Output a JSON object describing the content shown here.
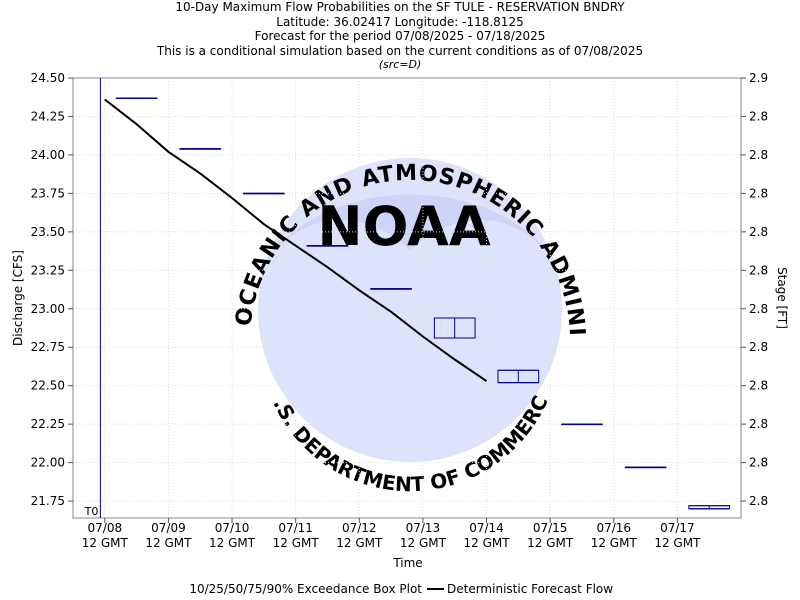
{
  "header": {
    "line1": "10-Day Maximum Flow Probabilities on the SF TULE - RESERVATION BNDRY",
    "line2": "Latitude: 36.02417 Longitude: -118.8125",
    "line3": "Forecast for the period 07/08/2025 - 07/18/2025",
    "line4": "This is a conditional simulation based on the current conditions as of 07/08/2025",
    "line5": "(src=D)"
  },
  "watermark": {
    "logo_text": "NOAA",
    "ring_top": "NATIONAL OCEANIC AND ATMOSPHERIC ADMINISTRATION",
    "ring_bottom": "U.S. DEPARTMENT OF COMMERCE"
  },
  "colors": {
    "forecast_line": "#000000",
    "box_plot": "#00008b",
    "t0_line": "#00008b",
    "grid": "#dddddd",
    "watermark_circle": "#dde3fb",
    "watermark_dark": "#cfd3f5",
    "watermark_text": "#c9cff0"
  },
  "chart_data": {
    "type": "line",
    "xlabel": "Time",
    "ylabel": "Discharge [CFS]",
    "ylabel_right": "Stage [FT]",
    "ylim": [
      21.64,
      24.5
    ],
    "yticks": [
      21.75,
      22.0,
      22.25,
      22.5,
      22.75,
      23.0,
      23.25,
      23.5,
      23.75,
      24.0,
      24.25,
      24.5
    ],
    "ytick_labels": [
      "21.75",
      "22.00",
      "22.25",
      "22.50",
      "22.75",
      "23.00",
      "23.25",
      "23.50",
      "23.75",
      "24.00",
      "24.25",
      "24.50"
    ],
    "right_tick_labels": [
      "2.8",
      "2.8",
      "2.8",
      "2.8",
      "2.8",
      "2.8",
      "2.8",
      "2.8",
      "2.8",
      "2.8",
      "2.8",
      "2.9"
    ],
    "xlim_days": [
      -0.5,
      10.0
    ],
    "xticks": [
      {
        "day": 0,
        "date": "07/08",
        "time": "12 GMT"
      },
      {
        "day": 1,
        "date": "07/09",
        "time": "12 GMT"
      },
      {
        "day": 2,
        "date": "07/10",
        "time": "12 GMT"
      },
      {
        "day": 3,
        "date": "07/11",
        "time": "12 GMT"
      },
      {
        "day": 4,
        "date": "07/12",
        "time": "12 GMT"
      },
      {
        "day": 5,
        "date": "07/13",
        "time": "12 GMT"
      },
      {
        "day": 6,
        "date": "07/14",
        "time": "12 GMT"
      },
      {
        "day": 7,
        "date": "07/15",
        "time": "12 GMT"
      },
      {
        "day": 8,
        "date": "07/16",
        "time": "12 GMT"
      },
      {
        "day": 9,
        "date": "07/17",
        "time": "12 GMT"
      }
    ],
    "t0_label": "T0",
    "t0_day": -0.07,
    "grid": true,
    "legend": {
      "placement": "bottom",
      "entries": [
        "10/25/50/75/90% Exceedance Box Plot",
        "Deterministic Forecast Flow"
      ]
    },
    "series": [
      {
        "name": "Deterministic Forecast Flow",
        "x": [
          0.0,
          0.25,
          0.5,
          1.0,
          1.5,
          2.0,
          2.5,
          3.0,
          3.5,
          4.0,
          4.5,
          5.0,
          5.5,
          6.0
        ],
        "y": [
          24.36,
          24.28,
          24.2,
          24.02,
          23.88,
          23.72,
          23.55,
          23.41,
          23.27,
          23.12,
          22.98,
          22.82,
          22.67,
          22.53
        ]
      }
    ],
    "box_plots": [
      {
        "day": 0.5,
        "p10": 24.37,
        "p25": 24.37,
        "p50": 24.37,
        "p75": 24.37,
        "p90": 24.37
      },
      {
        "day": 1.5,
        "p10": 24.04,
        "p25": 24.04,
        "p50": 24.04,
        "p75": 24.04,
        "p90": 24.04
      },
      {
        "day": 2.5,
        "p10": 23.75,
        "p25": 23.75,
        "p50": 23.75,
        "p75": 23.75,
        "p90": 23.75
      },
      {
        "day": 3.5,
        "p10": 23.41,
        "p25": 23.41,
        "p50": 23.41,
        "p75": 23.41,
        "p90": 23.41
      },
      {
        "day": 4.5,
        "p10": 23.13,
        "p25": 23.13,
        "p50": 23.13,
        "p75": 23.13,
        "p90": 23.13
      },
      {
        "day": 5.5,
        "p10": 22.81,
        "p25": 22.81,
        "p50": 22.81,
        "p75": 22.94,
        "p90": 22.94
      },
      {
        "day": 6.5,
        "p10": 22.52,
        "p25": 22.52,
        "p50": 22.52,
        "p75": 22.6,
        "p90": 22.6
      },
      {
        "day": 7.5,
        "p10": 22.25,
        "p25": 22.25,
        "p50": 22.25,
        "p75": 22.25,
        "p90": 22.25
      },
      {
        "day": 8.5,
        "p10": 21.97,
        "p25": 21.97,
        "p50": 21.97,
        "p75": 21.97,
        "p90": 21.97
      },
      {
        "day": 9.5,
        "p10": 21.7,
        "p25": 21.7,
        "p50": 21.7,
        "p75": 21.72,
        "p90": 21.72
      }
    ]
  }
}
